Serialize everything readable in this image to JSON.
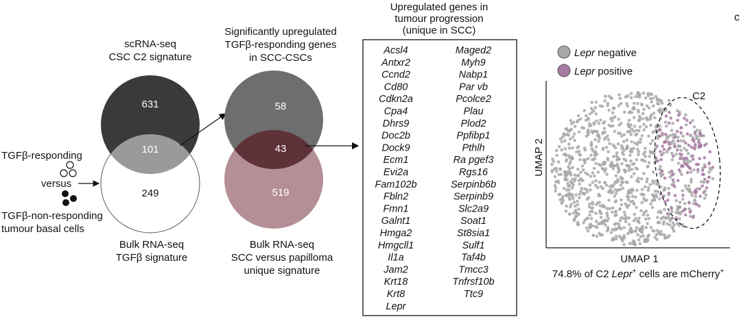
{
  "venn1": {
    "top_title_line1": "scRNA-seq",
    "top_title_line2": "CSC C2 signature",
    "bottom_title_line1": "Bulk RNA-seq",
    "bottom_title_line2": "TGFβ signature",
    "top_only": "631",
    "overlap": "101",
    "bottom_only": "249",
    "color_top": "#3a3a3a",
    "color_overlap": "#9a9a9a",
    "color_bottom": "#ffffff"
  },
  "cells_legend": {
    "responding": "TGFβ-responding",
    "versus": "versus",
    "nonresponding_line1": "TGFβ-non-responding",
    "nonresponding_line2": "tumour basal cells"
  },
  "venn2": {
    "top_title_line1": "Significantly upregulated",
    "top_title_line2": "TGFβ-responding genes",
    "top_title_line3": "in SCC-CSCs",
    "bottom_title_line1": "Bulk RNA-seq",
    "bottom_title_line2": "SCC versus papilloma",
    "bottom_title_line3": "unique signature",
    "top_only": "58",
    "overlap": "43",
    "bottom_only": "519",
    "color_top": "#6e6e6e",
    "color_overlap": "#5e3238",
    "color_bottom": "#b58f96"
  },
  "gene_box": {
    "title_line1": "Upregulated genes in",
    "title_line2": "tumour progression",
    "title_line3": "(unique in SCC)",
    "left_column": [
      "Acsl4",
      "Antxr2",
      "Ccnd2",
      "Cd80",
      "Cdkn2a",
      "Cpa4",
      "Dhrs9",
      "Doc2b",
      "Dock9",
      "Ecm1",
      "Evi2a",
      "Fam102b",
      "Fbln2",
      "Fmn1",
      "Galnt1",
      "Hmga2",
      "Hmgcll1",
      "Il1a",
      "Jam2",
      "Krt18",
      "Krt8",
      "Lepr"
    ],
    "right_column": [
      "Maged2",
      "Myh9",
      "Nabp1",
      "Par vb",
      "Pcolce2",
      "Plau",
      "Plod2",
      "Ppfibp1",
      "Pthlh",
      "Ra pgef3",
      "Rgs16",
      "Serpinb6b",
      "Serpinb9",
      "Slc2a9",
      "Soat1",
      "St8sia1",
      "Sulf1",
      "Taf4b",
      "Tmcc3",
      "Tnfrsf10b",
      "Ttc9"
    ],
    "highlight_gene": "Lepr",
    "highlight_color": "#c0392b"
  },
  "umap": {
    "legend_negative": "Lepr",
    "legend_negative_suffix": " negative",
    "legend_positive": "Lepr",
    "legend_positive_suffix": " positive",
    "color_negative": "#a8a8a8",
    "color_positive": "#a77aa3",
    "cluster_label": "C2",
    "xlabel": "UMAP 1",
    "ylabel": "UMAP 2",
    "caption_prefix": "74.8% of C2 ",
    "caption_gene": "Lepr",
    "caption_sup1": "+",
    "caption_mid": " cells are mCherry",
    "caption_sup2": "+"
  },
  "panel_letter": "c"
}
